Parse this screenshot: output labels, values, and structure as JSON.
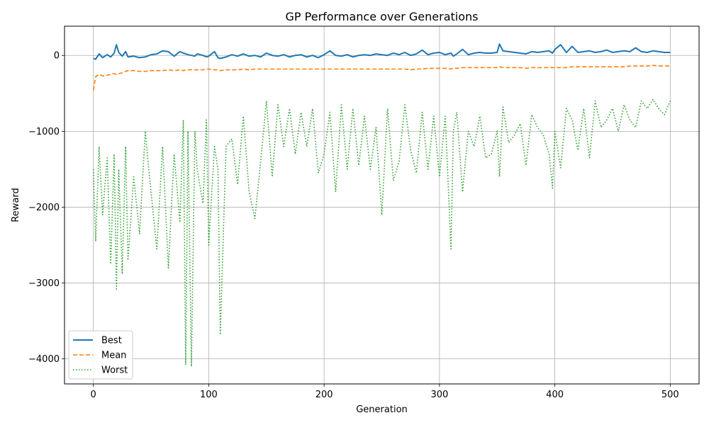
{
  "chart_data": {
    "type": "line",
    "title": "GP Performance over Generations",
    "xlabel": "Generation",
    "ylabel": "Reward",
    "xlim": [
      -25,
      525
    ],
    "ylim": [
      -4330,
      385
    ],
    "xticks": [
      0,
      100,
      200,
      300,
      400,
      500
    ],
    "yticks": [
      0,
      -1000,
      -2000,
      -3000,
      -4000
    ],
    "xtick_labels": [
      "0",
      "100",
      "200",
      "300",
      "400",
      "500"
    ],
    "ytick_labels": [
      "0",
      "−1000",
      "−2000",
      "−3000",
      "−4000"
    ],
    "grid": true,
    "legend_position": "lower-left",
    "x": [
      0,
      2,
      5,
      8,
      12,
      15,
      18,
      20,
      22,
      25,
      28,
      30,
      35,
      40,
      45,
      50,
      55,
      60,
      65,
      70,
      75,
      78,
      80,
      82,
      85,
      88,
      90,
      95,
      98,
      100,
      105,
      108,
      110,
      115,
      120,
      125,
      130,
      135,
      140,
      145,
      150,
      155,
      160,
      165,
      170,
      175,
      180,
      185,
      190,
      195,
      200,
      205,
      210,
      215,
      220,
      225,
      230,
      235,
      240,
      245,
      250,
      255,
      260,
      265,
      270,
      275,
      280,
      285,
      290,
      295,
      300,
      305,
      310,
      312,
      315,
      320,
      325,
      330,
      335,
      340,
      345,
      350,
      352,
      355,
      360,
      365,
      370,
      375,
      380,
      385,
      390,
      395,
      398,
      400,
      405,
      410,
      415,
      420,
      425,
      430,
      435,
      440,
      445,
      450,
      455,
      460,
      465,
      470,
      475,
      480,
      485,
      490,
      495,
      500
    ],
    "series": [
      {
        "name": "Best",
        "color": "#1f77b4",
        "style": "solid",
        "values": [
          -40,
          -50,
          20,
          -30,
          10,
          -20,
          30,
          140,
          40,
          -10,
          50,
          -20,
          -10,
          -30,
          -20,
          10,
          20,
          60,
          50,
          -10,
          50,
          30,
          20,
          10,
          0,
          -10,
          20,
          0,
          -20,
          -10,
          50,
          -30,
          -40,
          -20,
          10,
          -10,
          20,
          -10,
          0,
          -20,
          30,
          0,
          -10,
          10,
          -20,
          0,
          10,
          -20,
          0,
          -30,
          10,
          60,
          0,
          -10,
          10,
          -20,
          0,
          10,
          0,
          20,
          10,
          0,
          30,
          10,
          40,
          0,
          20,
          70,
          10,
          30,
          40,
          10,
          30,
          -10,
          20,
          80,
          10,
          30,
          40,
          30,
          30,
          40,
          150,
          60,
          50,
          40,
          30,
          20,
          50,
          40,
          50,
          60,
          30,
          80,
          140,
          40,
          120,
          40,
          50,
          60,
          40,
          50,
          70,
          40,
          50,
          60,
          50,
          100,
          50,
          40,
          60,
          50,
          40,
          40
        ]
      },
      {
        "name": "Mean",
        "color": "#ff7f0e",
        "style": "dashed",
        "values": [
          -460,
          -280,
          -250,
          -270,
          -260,
          -250,
          -240,
          -250,
          -240,
          -230,
          -210,
          -200,
          -200,
          -210,
          -210,
          -200,
          -200,
          -200,
          -190,
          -200,
          -190,
          -200,
          -190,
          -190,
          -190,
          -190,
          -190,
          -190,
          -180,
          -180,
          -190,
          -190,
          -200,
          -190,
          -190,
          -190,
          -180,
          -190,
          -180,
          -180,
          -180,
          -180,
          -180,
          -180,
          -180,
          -180,
          -180,
          -180,
          -180,
          -180,
          -180,
          -180,
          -180,
          -180,
          -180,
          -180,
          -180,
          -180,
          -180,
          -180,
          -180,
          -180,
          -180,
          -180,
          -180,
          -190,
          -180,
          -180,
          -170,
          -170,
          -170,
          -170,
          -180,
          -170,
          -170,
          -160,
          -160,
          -160,
          -160,
          -160,
          -160,
          -160,
          -150,
          -160,
          -160,
          -160,
          -160,
          -170,
          -160,
          -160,
          -160,
          -160,
          -160,
          -160,
          -160,
          -160,
          -150,
          -150,
          -150,
          -150,
          -150,
          -150,
          -150,
          -150,
          -150,
          -150,
          -140,
          -140,
          -140,
          -140,
          -130,
          -140,
          -140,
          -140
        ]
      },
      {
        "name": "Worst",
        "color": "#2ca02c",
        "style": "dotted",
        "values": [
          -1500,
          -2450,
          -1200,
          -2100,
          -1350,
          -2750,
          -1300,
          -3080,
          -1500,
          -2880,
          -1200,
          -2700,
          -1600,
          -2350,
          -1000,
          -1800,
          -2550,
          -1200,
          -2800,
          -1300,
          -2200,
          -850,
          -4080,
          -1000,
          -4100,
          -1000,
          -1500,
          -1950,
          -850,
          -2500,
          -1200,
          -1500,
          -3680,
          -1200,
          -1100,
          -1700,
          -800,
          -1800,
          -2150,
          -1400,
          -600,
          -1600,
          -650,
          -1200,
          -700,
          -1300,
          -750,
          -1200,
          -700,
          -1550,
          -1300,
          -750,
          -1800,
          -650,
          -1500,
          -700,
          -1450,
          -800,
          -1500,
          -950,
          -2100,
          -700,
          -1650,
          -1400,
          -650,
          -1250,
          -1550,
          -750,
          -1500,
          -800,
          -1600,
          -800,
          -2550,
          -1000,
          -750,
          -1800,
          -1000,
          -1200,
          -800,
          -1350,
          -1300,
          -1000,
          -1600,
          -680,
          -1150,
          -1050,
          -900,
          -1450,
          -780,
          -950,
          -1050,
          -1300,
          -1750,
          -1000,
          -1480,
          -700,
          -850,
          -1250,
          -700,
          -1350,
          -600,
          -950,
          -850,
          -700,
          -1000,
          -650,
          -850,
          -950,
          -600,
          -700,
          -580,
          -700,
          -780,
          -600
        ]
      }
    ]
  }
}
